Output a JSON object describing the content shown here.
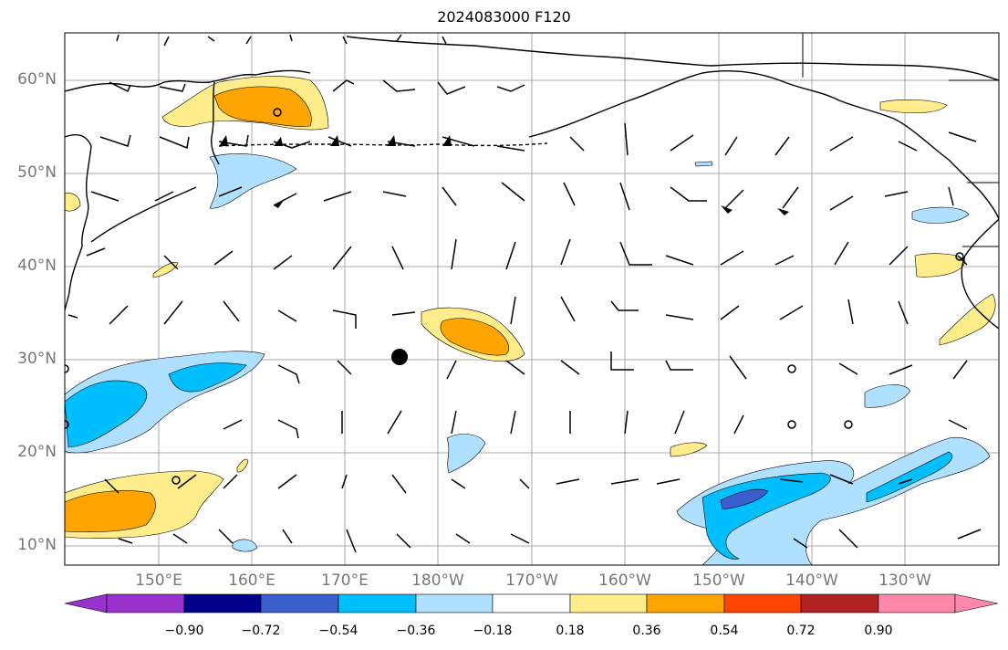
{
  "title": "2024083000 F120",
  "lat_labels": [
    "60°N",
    "50°N",
    "40°N",
    "30°N",
    "20°N",
    "10°N"
  ],
  "lon_labels": [
    "150°E",
    "160°E",
    "170°E",
    "180°W",
    "170°W",
    "160°W",
    "150°W",
    "140°W",
    "130°W"
  ],
  "colorbar": {
    "ticks": [
      "−0.90",
      "−0.72",
      "−0.54",
      "−0.36",
      "−0.18",
      "0.18",
      "0.36",
      "0.54",
      "0.72",
      "0.90"
    ],
    "colors": [
      "#9932cc",
      "#00008b",
      "#3a5fcd",
      "#00bfff",
      "#b0e0ff",
      "#ffffff",
      "#ffec8b",
      "#ffa500",
      "#ff4500",
      "#b22222",
      "#ff88aa"
    ]
  },
  "map_features": {
    "storm_center": "30°N 176°E",
    "positive_anomaly_color": "#ffa500",
    "negative_anomaly_color": "#00bfff"
  }
}
